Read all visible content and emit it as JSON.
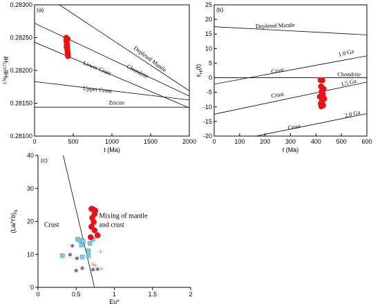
{
  "chart_data": [
    {
      "id": "a",
      "type": "scatter",
      "panel_label": "(a)",
      "xlabel": "t (Ma)",
      "ylabel_parts": {
        "sup1": "176",
        "base1": "Hf/",
        "sup2": "177",
        "base2": "Hf"
      },
      "xlim": [
        0,
        2000
      ],
      "ylim": [
        0.281,
        0.283
      ],
      "x_ticks": [
        0,
        500,
        1000,
        1500,
        2000
      ],
      "y_ticks": [
        "0.28100",
        "0.28150",
        "0.28200",
        "0.28250",
        "0.28300"
      ],
      "reference_lines": [
        {
          "name": "Depleted Mantle",
          "points": [
            [
              0,
              0.28325
            ],
            [
              2000,
              0.28169
            ]
          ]
        },
        {
          "name": "Chondrite",
          "points": [
            [
              0,
              0.28272
            ],
            [
              2000,
              0.28161
            ]
          ]
        },
        {
          "name": "Lower Crust",
          "points": [
            [
              0,
              0.28243
            ],
            [
              2000,
              0.28143
            ]
          ]
        },
        {
          "name": "Upper Crust",
          "points": [
            [
              0,
              0.28183
            ],
            [
              2000,
              0.28155
            ]
          ]
        },
        {
          "name": "Zricon",
          "points": [
            [
              0,
              0.28144
            ],
            [
              2000,
              0.28144
            ]
          ]
        }
      ],
      "series": [
        {
          "color": "#e8121b",
          "marker": "circle",
          "x": [
            410,
            412,
            415,
            418,
            420,
            422,
            425,
            427,
            430,
            432,
            428,
            415
          ],
          "y": [
            0.2825,
            0.28246,
            0.28243,
            0.2824,
            0.28237,
            0.28234,
            0.28231,
            0.28228,
            0.28225,
            0.28222,
            0.28248,
            0.28236
          ]
        }
      ]
    },
    {
      "id": "b",
      "type": "scatter",
      "panel_label": "(b)",
      "xlabel": "t (Ma)",
      "ylabel_parts": {
        "base": "ε",
        "sub": "Hf",
        "tail": "(t)"
      },
      "xlim": [
        0,
        600
      ],
      "ylim": [
        -20,
        25
      ],
      "x_ticks": [
        0,
        100,
        200,
        300,
        400,
        500,
        600
      ],
      "y_ticks": [
        -20,
        -15,
        -10,
        -5,
        0,
        5,
        10,
        15,
        20,
        25
      ],
      "reference_lines": [
        {
          "name": "Depleted Mantle",
          "points": [
            [
              0,
              17.5
            ],
            [
              600,
              14.7
            ]
          ]
        },
        {
          "name": "1.0 Ga",
          "points": [
            [
              0,
              -2.2
            ],
            [
              600,
              7.5
            ]
          ]
        },
        {
          "name": "Chondrite",
          "points": [
            [
              0,
              0
            ],
            [
              600,
              0
            ]
          ]
        },
        {
          "name": "1.5 Ga",
          "points": [
            [
              0,
              -12.5
            ],
            [
              600,
              -1.5
            ]
          ]
        },
        {
          "name": "2.0 Ga",
          "points": [
            [
              165,
              -20
            ],
            [
              600,
              -12.3
            ]
          ]
        }
      ],
      "line_labels": [
        {
          "text": "Depleted Mantle",
          "x": 240,
          "y": 17.2,
          "anchor": "middle"
        },
        {
          "text": "Crust",
          "x": 250,
          "y": 1.8,
          "anchor": "middle"
        },
        {
          "text": "1.0 Ga",
          "x": 520,
          "y": 7.9,
          "anchor": "middle"
        },
        {
          "text": "Chondrite",
          "x": 530,
          "y": 0.5,
          "anchor": "middle"
        },
        {
          "text": "Crust",
          "x": 250,
          "y": -6.5,
          "anchor": "middle"
        },
        {
          "text": "1.5 Ga",
          "x": 530,
          "y": -2.3,
          "anchor": "middle"
        },
        {
          "text": "Crust",
          "x": 315,
          "y": -17.5,
          "anchor": "middle"
        },
        {
          "text": "2.0 Ga",
          "x": 545,
          "y": -13.0,
          "anchor": "middle"
        }
      ],
      "series": [
        {
          "color": "#e8121b",
          "marker": "circle",
          "x": [
            418,
            425,
            420,
            430,
            422,
            427,
            415,
            432,
            424,
            419,
            428,
            421,
            426,
            423
          ],
          "y": [
            -0.8,
            -0.9,
            -3.0,
            -3.8,
            -4.8,
            -5.6,
            -6.5,
            -7.2,
            -8.0,
            -8.8,
            -9.4,
            -9.8,
            -6.0,
            -5.0
          ]
        }
      ]
    },
    {
      "id": "c",
      "type": "scatter",
      "panel_label": "(c)",
      "xlabel": "Eu*",
      "ylabel_parts": {
        "base": "(La/Yb)",
        "sub": "N"
      },
      "xlim": [
        0,
        2
      ],
      "ylim": [
        0,
        40
      ],
      "x_ticks": [
        "0",
        "0.5",
        "1",
        "1.5",
        "2"
      ],
      "y_ticks": [
        0,
        10,
        20,
        30,
        40
      ],
      "boundary_line": {
        "points": [
          [
            0.33,
            40
          ],
          [
            0.74,
            0
          ]
        ]
      },
      "region_labels": [
        {
          "text": "Crust",
          "x": 0.08,
          "y": 18.3
        },
        {
          "text": "Mixing of mantle",
          "x": 0.8,
          "y": 21.0
        },
        {
          "text": "and crust",
          "x": 0.8,
          "y": 18.3
        }
      ],
      "series": [
        {
          "marker": "circle",
          "color": "#e8121b",
          "x": [
            0.7,
            0.72,
            0.75,
            0.74,
            0.71,
            0.73,
            0.7,
            0.74,
            0.78,
            0.69
          ],
          "y": [
            23.8,
            23.7,
            23.3,
            22.2,
            21.1,
            19.8,
            18.4,
            17.3,
            15.8,
            15.2
          ]
        },
        {
          "marker": "square",
          "color": "#7cc9e8",
          "x": [
            0.52,
            0.55,
            0.59,
            0.57,
            0.68,
            0.66,
            0.72,
            0.58,
            0.66,
            0.32
          ],
          "y": [
            14.6,
            14.2,
            14.0,
            12.8,
            13.3,
            11.1,
            14.6,
            9.2,
            9.6,
            9.6
          ]
        },
        {
          "marker": "star",
          "color": "#555555",
          "x": [
            0.45,
            0.42,
            0.51,
            0.5,
            0.58,
            0.72,
            0.78
          ],
          "y": [
            12.6,
            9.9,
            8.8,
            5.1,
            5.8,
            5.4,
            5.5
          ]
        },
        {
          "marker": "plus",
          "color": "#c78f8f",
          "x": [
            0.82,
            0.72,
            0.75,
            0.83
          ],
          "y": [
            10.8,
            7.0,
            6.6,
            5.6
          ]
        }
      ]
    }
  ]
}
